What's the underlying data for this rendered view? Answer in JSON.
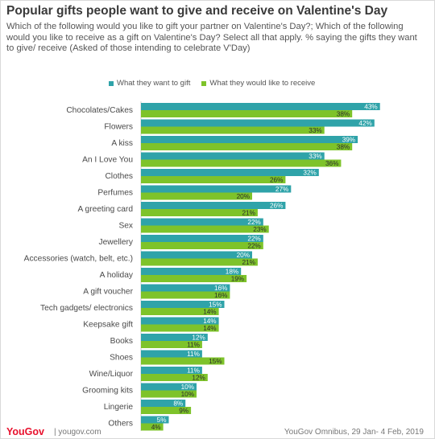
{
  "title": "Popular gifts people want to give and receive on Valentine's Day",
  "subtitle": "Which of the following would you like to gift your partner on Valentine's Day?; Which of the following would you like to receive as a gift on Valentine's Day? Select all that apply. % saying the gifts they want to give/ receive (Asked of those intending to celebrate V'Day)",
  "colors": {
    "give": "#2fa3a9",
    "receive": "#7ec32a"
  },
  "footer": {
    "logo": "YouGov",
    "url": "| yougov.com",
    "source": "YouGov Omnibus, 29 Jan- 4 Feb, 2019"
  },
  "chart_data": {
    "type": "bar",
    "orientation": "horizontal",
    "categories": [
      "Chocolates/Cakes",
      "Flowers",
      "A kiss",
      "An I Love You",
      "Clothes",
      "Perfumes",
      "A greeting card",
      "Sex",
      "Jewellery",
      "Accessories (watch, belt, etc.)",
      "A holiday",
      "A gift voucher",
      "Tech gadgets/ electronics",
      "Keepsake gift",
      "Books",
      "Shoes",
      "Wine/Liquor",
      "Grooming kits",
      "Lingerie",
      "Others"
    ],
    "series": [
      {
        "name": "What they want to gift",
        "values": [
          43,
          42,
          39,
          33,
          32,
          27,
          26,
          22,
          22,
          20,
          18,
          16,
          15,
          14,
          12,
          11,
          11,
          10,
          8,
          5
        ]
      },
      {
        "name": "What they would like to receive",
        "values": [
          38,
          33,
          38,
          36,
          26,
          20,
          21,
          23,
          22,
          21,
          19,
          16,
          14,
          14,
          11,
          15,
          12,
          10,
          9,
          4
        ]
      }
    ],
    "value_suffix": "%",
    "xlim": [
      0,
      50
    ],
    "legend_position": "top",
    "grid": false
  }
}
